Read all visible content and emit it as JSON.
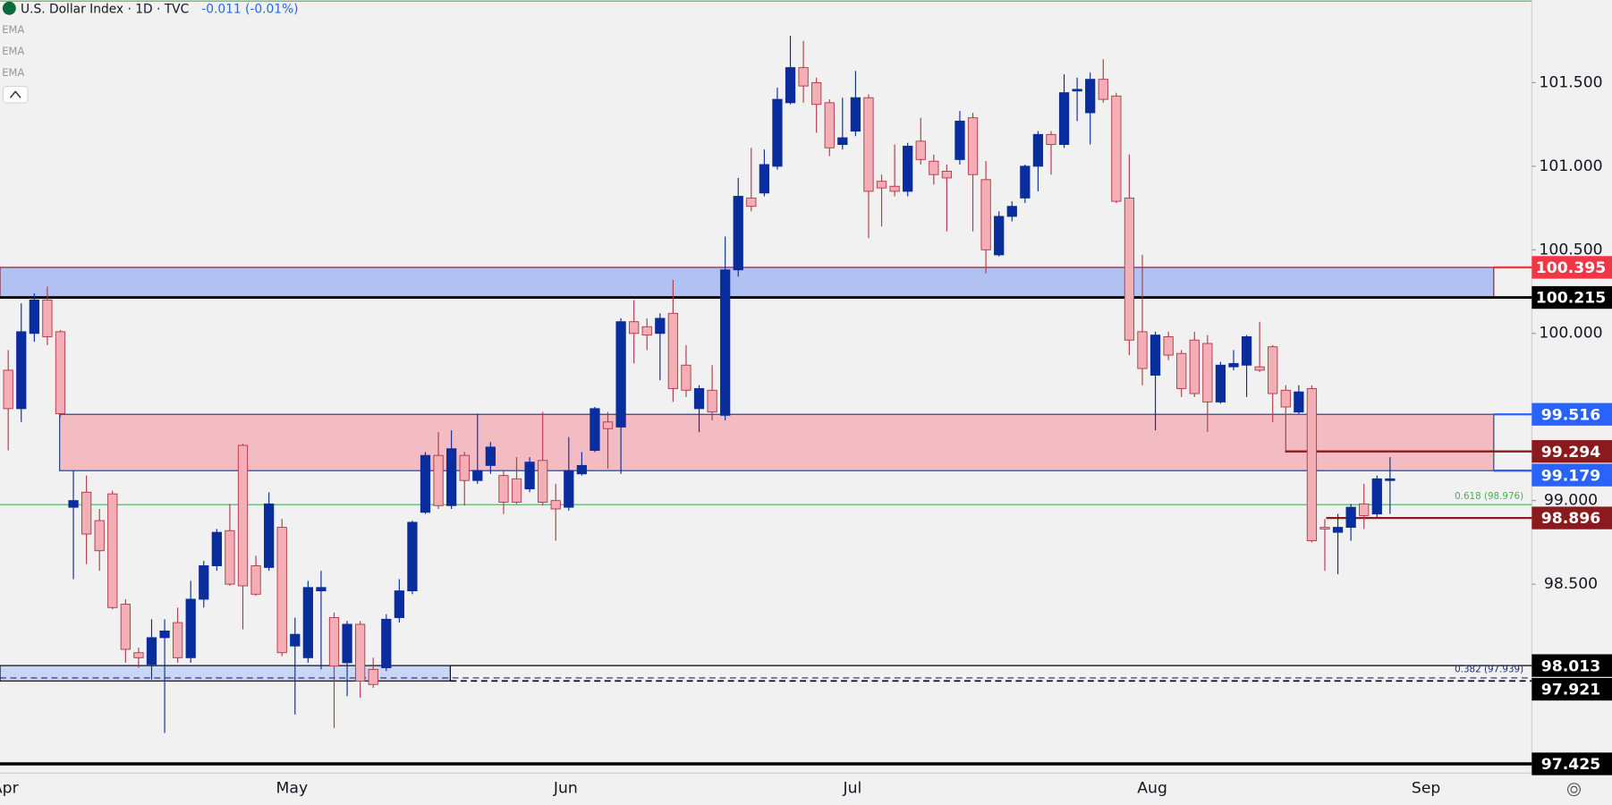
{
  "chart_data": {
    "type": "candlestick",
    "title": "U.S. Dollar Index · 1D · TVC",
    "subtitle": "-0.011 (-0.01%)",
    "indicators": [
      "EMA",
      "EMA",
      "EMA"
    ],
    "categories": [
      "Apr",
      null,
      null,
      null,
      null,
      null,
      null,
      null,
      null,
      null,
      null,
      null,
      null,
      null,
      null,
      null,
      null,
      null,
      null,
      null,
      null,
      null,
      "May",
      null,
      null,
      null,
      null,
      null,
      null,
      null,
      null,
      null,
      null,
      null,
      null,
      null,
      null,
      null,
      null,
      null,
      null,
      null,
      null,
      "Jun",
      null,
      null,
      null,
      null,
      null,
      null,
      null,
      null,
      null,
      null,
      null,
      null,
      null,
      null,
      null,
      null,
      null,
      null,
      null,
      null,
      null,
      "Jul",
      null,
      null,
      null,
      null,
      null,
      null,
      null,
      null,
      null,
      null,
      null,
      null,
      null,
      null,
      null,
      null,
      null,
      null,
      null,
      null,
      null,
      null,
      "Aug",
      null,
      null,
      null,
      null,
      null,
      null,
      null,
      null,
      null,
      null,
      null,
      null,
      null,
      null,
      null,
      null,
      null,
      null,
      null,
      null,
      "Sep"
    ],
    "open": [
      99.78,
      99.55,
      100.0,
      100.2,
      100.01,
      98.96,
      99.05,
      98.88,
      99.04,
      98.38,
      98.09,
      98.02,
      98.18,
      98.27,
      98.06,
      98.41,
      98.61,
      98.82,
      99.33,
      98.61,
      98.6,
      98.84,
      98.13,
      98.06,
      98.46,
      98.3,
      98.03,
      98.26,
      97.99,
      98.0,
      98.3,
      98.46,
      98.93,
      99.27,
      98.97,
      99.27,
      99.12,
      99.21,
      99.15,
      99.13,
      99.07,
      99.24,
      99.0,
      98.96,
      99.16,
      99.3,
      99.47,
      99.44,
      100.07,
      100.04,
      100.0,
      100.12,
      99.81,
      99.55,
      99.66,
      99.51,
      100.38,
      100.81,
      100.84,
      101.0,
      101.38,
      101.59,
      101.5,
      101.38,
      101.13,
      101.21,
      101.41,
      100.91,
      100.88,
      100.85,
      101.15,
      101.03,
      100.97,
      101.04,
      101.29,
      100.92,
      100.47,
      100.7,
      100.81,
      101.0,
      101.19,
      101.13,
      101.45,
      101.32,
      101.52,
      101.42,
      100.81,
      100.01,
      99.75,
      99.98,
      99.88,
      99.96,
      99.94,
      99.59,
      99.8,
      99.81,
      99.8,
      99.92,
      99.66,
      99.53,
      99.67,
      98.84,
      98.81,
      98.84,
      98.98,
      98.92,
      99.12,
      null,
      null,
      null
    ],
    "high": [
      99.9,
      100.18,
      100.24,
      100.28,
      100.02,
      99.18,
      99.15,
      98.95,
      99.06,
      98.41,
      98.12,
      98.29,
      98.29,
      98.36,
      98.52,
      98.64,
      98.83,
      98.98,
      99.34,
      98.67,
      99.05,
      98.89,
      98.3,
      98.52,
      98.58,
      98.33,
      98.28,
      98.28,
      98.06,
      98.32,
      98.53,
      98.88,
      99.29,
      99.41,
      99.42,
      99.29,
      99.52,
      99.35,
      99.18,
      99.26,
      99.26,
      99.53,
      99.1,
      99.38,
      99.29,
      99.56,
      99.53,
      100.09,
      100.2,
      100.09,
      100.12,
      100.32,
      99.93,
      99.69,
      99.81,
      100.58,
      100.93,
      101.11,
      101.1,
      101.47,
      101.78,
      101.75,
      101.53,
      101.4,
      101.41,
      101.57,
      101.43,
      100.95,
      101.13,
      101.14,
      101.29,
      101.07,
      101.01,
      101.33,
      101.32,
      101.03,
      100.73,
      100.79,
      101.01,
      101.21,
      101.21,
      101.55,
      101.53,
      101.56,
      101.64,
      101.44,
      101.07,
      100.47,
      100.01,
      100.01,
      99.9,
      100.01,
      99.99,
      99.83,
      99.9,
      99.99,
      100.07,
      99.93,
      99.69,
      99.69,
      99.69,
      98.89,
      98.92,
      98.98,
      99.1,
      99.15,
      99.26,
      null,
      null,
      null
    ],
    "low": [
      99.3,
      99.47,
      99.95,
      99.93,
      99.5,
      98.53,
      98.62,
      98.58,
      98.35,
      98.03,
      98.0,
      97.93,
      97.61,
      98.03,
      98.03,
      98.36,
      98.58,
      98.49,
      98.23,
      98.43,
      98.58,
      98.07,
      97.72,
      98.03,
      97.99,
      97.64,
      97.83,
      97.82,
      97.88,
      97.98,
      98.27,
      98.44,
      98.92,
      98.95,
      98.95,
      98.97,
      99.1,
      99.16,
      98.92,
      98.98,
      99.05,
      98.97,
      98.76,
      98.94,
      99.15,
      99.29,
      99.19,
      99.16,
      99.82,
      99.9,
      99.72,
      99.59,
      99.62,
      99.41,
      99.48,
      99.48,
      100.34,
      100.73,
      100.82,
      100.98,
      101.37,
      101.38,
      101.2,
      101.06,
      101.1,
      101.18,
      100.57,
      100.64,
      100.82,
      100.82,
      101.01,
      100.89,
      100.61,
      101.01,
      100.61,
      100.36,
      100.46,
      100.67,
      100.78,
      100.85,
      100.95,
      101.11,
      101.27,
      101.13,
      101.38,
      100.78,
      99.87,
      99.69,
      99.42,
      99.84,
      99.62,
      99.62,
      99.41,
      99.58,
      99.78,
      99.62,
      99.77,
      99.47,
      99.3,
      99.52,
      98.75,
      98.58,
      98.56,
      98.76,
      98.83,
      98.9,
      98.92,
      null,
      null,
      null
    ],
    "close": [
      99.55,
      100.01,
      100.2,
      99.98,
      99.52,
      99.0,
      98.8,
      98.7,
      98.36,
      98.11,
      98.06,
      98.18,
      98.22,
      98.06,
      98.41,
      98.61,
      98.81,
      98.5,
      98.49,
      98.44,
      98.98,
      98.09,
      98.2,
      98.48,
      98.48,
      98.01,
      98.26,
      97.92,
      97.9,
      98.29,
      98.46,
      98.87,
      99.27,
      98.97,
      99.31,
      99.12,
      99.18,
      99.32,
      98.99,
      98.99,
      99.23,
      98.99,
      98.95,
      99.18,
      99.21,
      99.55,
      99.43,
      100.07,
      100.0,
      99.99,
      100.09,
      99.67,
      99.66,
      99.67,
      99.53,
      100.38,
      100.82,
      100.76,
      101.01,
      101.4,
      101.59,
      101.48,
      101.37,
      101.11,
      101.17,
      101.41,
      100.85,
      100.87,
      100.85,
      101.12,
      101.04,
      100.95,
      100.93,
      101.27,
      100.95,
      100.5,
      100.7,
      100.76,
      101.0,
      101.19,
      101.13,
      101.44,
      101.46,
      101.52,
      101.4,
      100.79,
      99.96,
      99.79,
      99.99,
      99.87,
      99.67,
      99.64,
      99.59,
      99.81,
      99.82,
      99.98,
      99.78,
      99.64,
      99.56,
      99.65,
      98.76,
      98.83,
      98.84,
      98.96,
      98.91,
      99.13,
      99.13,
      null,
      null,
      null
    ],
    "up_color": "#0a2d9e",
    "down_color": "#f4aeb5",
    "down_border": "#b33848",
    "ylim": [
      97.37,
      101.994
    ],
    "yticks": [
      {
        "value": 98.5,
        "label": "98.500"
      },
      {
        "value": 99,
        "label": "99.000"
      },
      {
        "value": 100,
        "label": "100.000"
      },
      {
        "value": 100.5,
        "label": "100.500"
      },
      {
        "value": 101,
        "label": "101.000"
      },
      {
        "value": 101.5,
        "label": "101.500"
      }
    ],
    "zones": [
      {
        "top": 100.395,
        "bottom": 100.215,
        "color": "#b1c2f2"
      },
      {
        "top": 99.516,
        "bottom": 99.179,
        "color": "#f2bcc2"
      },
      {
        "top": 98.013,
        "bottom": 97.921,
        "color": "#c9d6f5"
      }
    ],
    "price_labels": [
      {
        "value": 100.395,
        "color": "#f23645"
      },
      {
        "value": 100.215,
        "color": "#000000"
      },
      {
        "value": 99.516,
        "color": "#2962ff"
      },
      {
        "value": 99.294,
        "color": "#8b1a1f"
      },
      {
        "value": 99.179,
        "color": "#2962ff"
      },
      {
        "value": 98.896,
        "color": "#8b1a1f"
      },
      {
        "value": 98.013,
        "color": "#000000"
      },
      {
        "value": 97.921,
        "color": "#000000"
      },
      {
        "value": 97.425,
        "color": "#000000"
      }
    ],
    "fib_levels": [
      {
        "label": "0.618 (98.976)",
        "value": 98.976,
        "color": "#4caf50"
      },
      {
        "label": "0.382 (97.939)",
        "value": 97.939,
        "color": "#1e2a6e"
      }
    ]
  }
}
